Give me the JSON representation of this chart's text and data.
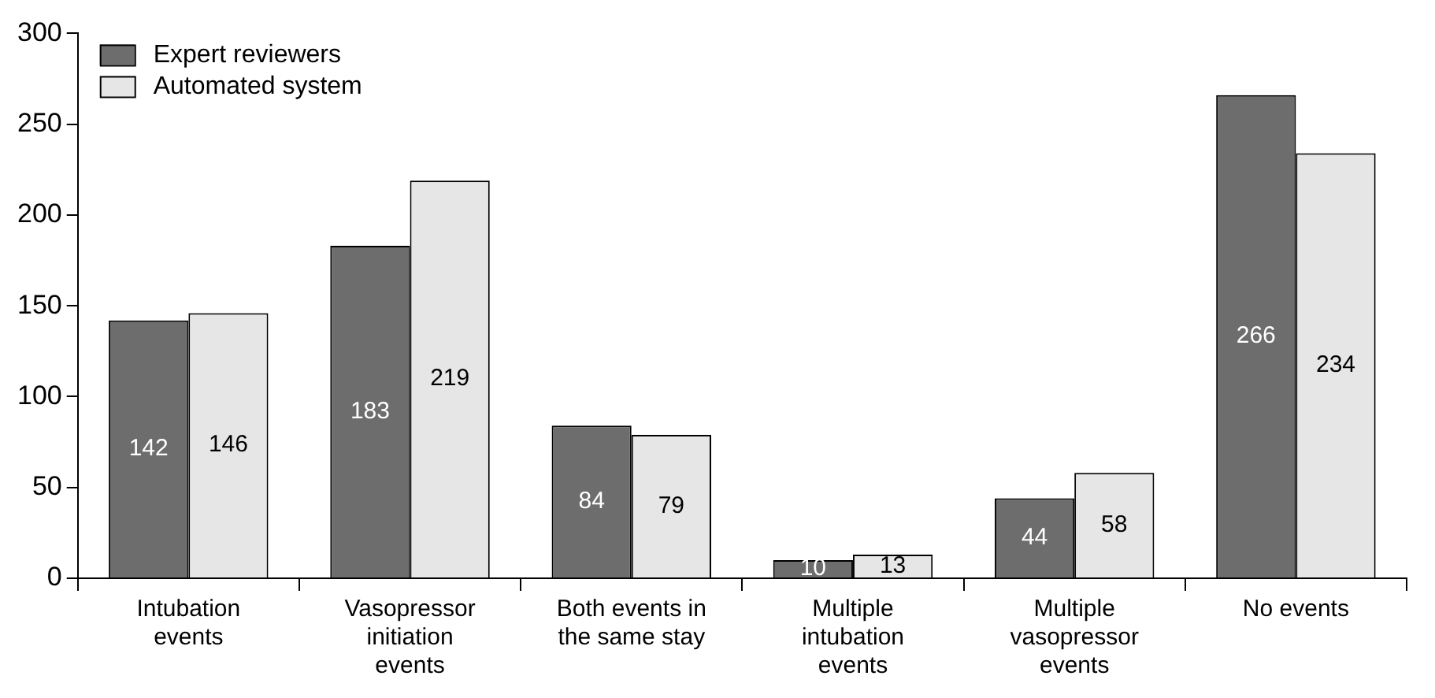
{
  "chart_data": {
    "type": "bar",
    "categories": [
      "Intubation events",
      "Vasopressor initiation events",
      "Both events in the same stay",
      "Multiple intubation events",
      "Multiple vasopressor events",
      "No events"
    ],
    "series": [
      {
        "name": "Expert reviewers",
        "color": "#6d6d6d",
        "values": [
          142,
          183,
          84,
          10,
          44,
          266
        ]
      },
      {
        "name": "Automated system",
        "color": "#e6e6e6",
        "values": [
          146,
          219,
          79,
          13,
          58,
          234
        ]
      }
    ],
    "ylim": [
      0,
      300
    ],
    "yticks": [
      0,
      50,
      100,
      150,
      200,
      250,
      300
    ],
    "grid": false,
    "legend": "top left",
    "data_labels": true
  }
}
